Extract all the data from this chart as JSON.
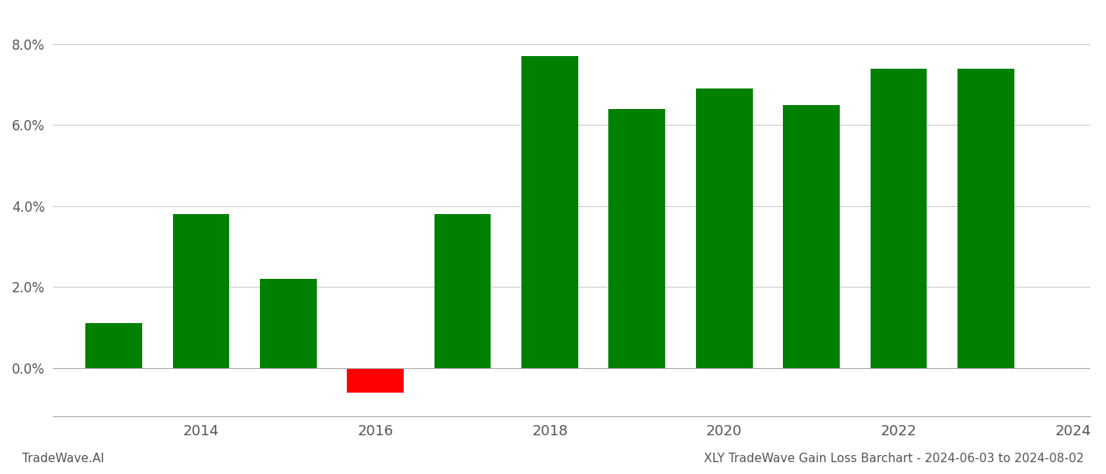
{
  "years": [
    2013,
    2014,
    2015,
    2016,
    2017,
    2018,
    2019,
    2020,
    2021,
    2022,
    2023
  ],
  "values": [
    0.011,
    0.038,
    0.022,
    -0.006,
    0.038,
    0.077,
    0.064,
    0.069,
    0.065,
    0.074,
    0.074
  ],
  "colors": [
    "#008000",
    "#008000",
    "#008000",
    "#ff0000",
    "#008000",
    "#008000",
    "#008000",
    "#008000",
    "#008000",
    "#008000",
    "#008000"
  ],
  "title": "XLY TradeWave Gain Loss Barchart - 2024-06-03 to 2024-08-02",
  "footer_left": "TradeWave.AI",
  "ylim_min": -0.012,
  "ylim_max": 0.088,
  "yticks": [
    0.0,
    0.02,
    0.04,
    0.06,
    0.08
  ],
  "xticks": [
    2014,
    2016,
    2018,
    2020,
    2022,
    2024
  ],
  "xlim_min": 2012.3,
  "xlim_max": 2024.2,
  "background_color": "#ffffff",
  "grid_color": "#cccccc",
  "bar_width": 0.65
}
